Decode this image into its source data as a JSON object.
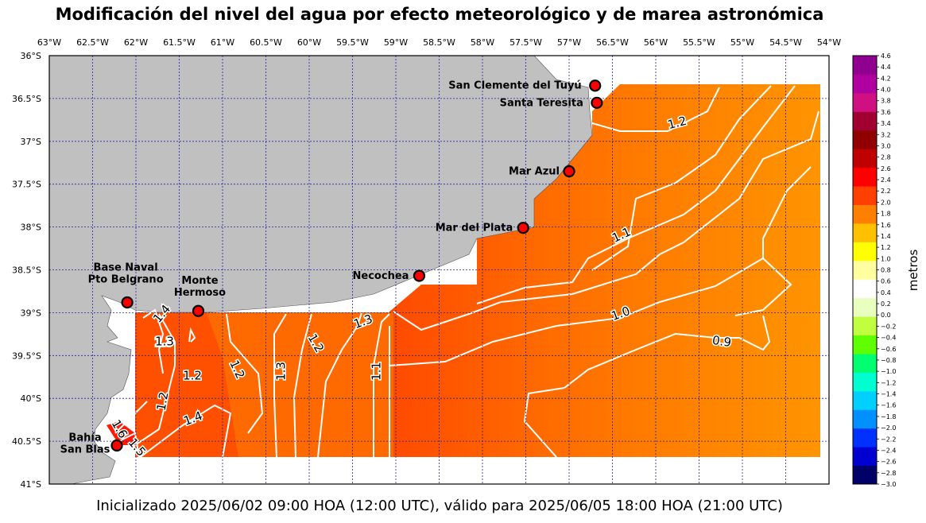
{
  "title": "Modificación del nivel del agua por efecto meteorológico y de marea astronómica",
  "footer": "Inicializado 2025/06/02 09:00 HOA (12:00 UTC), válido para 2025/06/05 18:00 HOA (21:00 UTC)",
  "map": {
    "lon_range": [
      -63,
      -54
    ],
    "lat_range": [
      -41,
      -36
    ],
    "lon_ticks": [
      "63°W",
      "62.5°W",
      "62°W",
      "61.5°W",
      "61°W",
      "60.5°W",
      "60°W",
      "59.5°W",
      "59°W",
      "58.5°W",
      "58°W",
      "57.5°W",
      "57°W",
      "56.5°W",
      "56°W",
      "55.5°W",
      "55°W",
      "54.5°W",
      "54°W"
    ],
    "lat_ticks": [
      "36°S",
      "36.5°S",
      "37°S",
      "37.5°S",
      "38°S",
      "38.5°S",
      "39°S",
      "39.5°S",
      "40°S",
      "40.5°S",
      "41°S"
    ],
    "grid": true,
    "land_color": "#c0c0c0",
    "contour_color": "#ffffff"
  },
  "stations": [
    {
      "name": "San Clemente del Tuyú",
      "lon": -56.7,
      "lat": -36.35
    },
    {
      "name": "Santa Teresita",
      "lon": -56.68,
      "lat": -36.55
    },
    {
      "name": "Mar Azul",
      "lon": -57.0,
      "lat": -37.35
    },
    {
      "name": "Mar del Plata",
      "lon": -57.53,
      "lat": -38.01
    },
    {
      "name": "Necochea",
      "lon": -58.73,
      "lat": -38.57
    },
    {
      "name": "Base Naval\nPto Belgrano",
      "lon": -62.1,
      "lat": -38.88
    },
    {
      "name": "Monte\nHermoso",
      "lon": -61.28,
      "lat": -38.98
    },
    {
      "name": "Bahía\nSan Blas",
      "lon": -62.22,
      "lat": -40.55
    }
  ],
  "contour_labels": [
    "1.2",
    "1.1",
    "1.0",
    "0.9",
    "1.3",
    "1.2",
    "1.1",
    "1.3",
    "1.2",
    "1.4",
    "1.3",
    "1.2",
    "1.2",
    "1.4",
    "1.6",
    "1.5",
    "1.3"
  ],
  "colorbar": {
    "label": "metros",
    "min": -3.0,
    "max": 4.6,
    "ticks": [
      "4.6",
      "4.4",
      "4.2",
      "4.0",
      "3.8",
      "3.6",
      "3.4",
      "3.2",
      "3.0",
      "2.8",
      "2.6",
      "2.4",
      "2.2",
      "2.0",
      "1.8",
      "1.6",
      "1.4",
      "1.2",
      "1.0",
      "0.8",
      "0.6",
      "0.4",
      "0.2",
      "0.0",
      "−0.2",
      "−0.4",
      "−0.6",
      "−0.8",
      "−1.0",
      "−1.2",
      "−1.4",
      "−1.6",
      "−1.8",
      "−2.0",
      "−2.2",
      "−2.4",
      "−2.6",
      "−2.8",
      "−3.0"
    ],
    "colors": [
      "#000066",
      "#0000d0",
      "#0030ff",
      "#0090ff",
      "#00d0ff",
      "#00ffd0",
      "#00ff70",
      "#60ff00",
      "#c0ff40",
      "#e8ffc0",
      "#ffffff",
      "#ffffa0",
      "#ffff00",
      "#ffc000",
      "#ff8000",
      "#ff4000",
      "#ff0000",
      "#c00000",
      "#900000",
      "#a00030",
      "#d01080",
      "#b000a0",
      "#900090"
    ]
  }
}
